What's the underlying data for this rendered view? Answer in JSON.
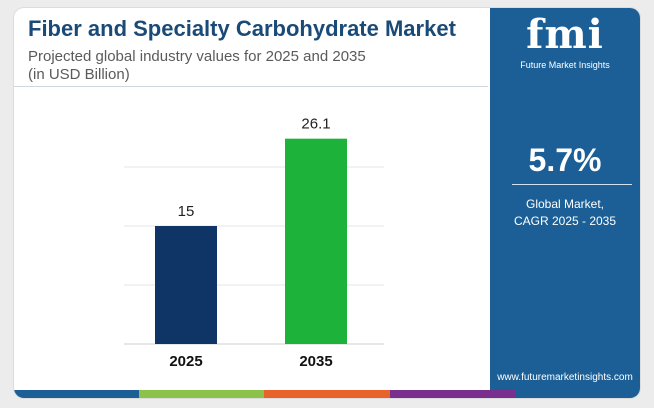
{
  "header": {
    "title": "Fiber and Specialty Carbohydrate Market",
    "subtitle_line1": "Projected global industry values for 2025 and 2035",
    "subtitle_line2": "(in USD Billion)"
  },
  "sidebar": {
    "logo_text": "fmi",
    "logo_subtitle": "Future Market Insights",
    "cagr_value": "5.7%",
    "cagr_label_line1": "Global Market,",
    "cagr_label_line2": "CAGR 2025 - 2035",
    "website": "www.futuremarketinsights.com"
  },
  "colors": {
    "bar_2025": "#0f3566",
    "bar_2035": "#1db33b",
    "sidebar_bg": "#1b5f96",
    "title": "#1a4a78",
    "bottom_bar": [
      "#1b5f96",
      "#8bc34a",
      "#e8622c",
      "#7a2f8e",
      "#1b5f96"
    ]
  },
  "chart_data": {
    "type": "bar",
    "categories": [
      "2025",
      "2035"
    ],
    "values": [
      15,
      26.1
    ],
    "value_labels": [
      "15",
      "26.1"
    ],
    "ylim": [
      0,
      30
    ],
    "grid": true,
    "xlabel": "",
    "ylabel": ""
  }
}
